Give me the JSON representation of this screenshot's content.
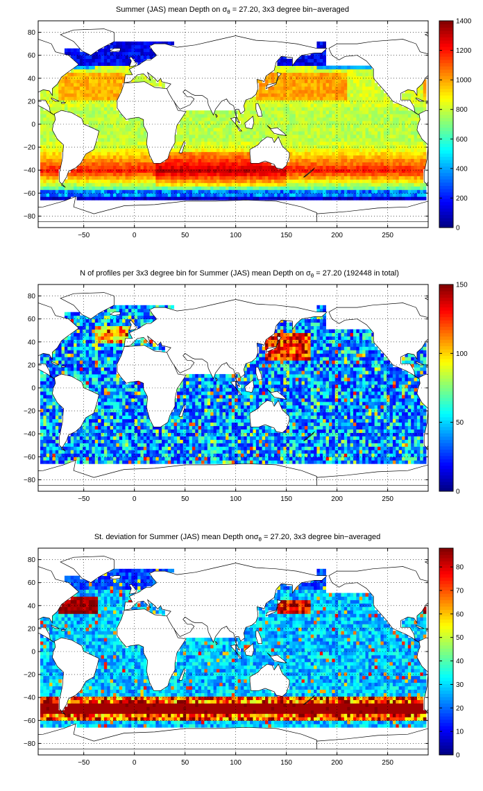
{
  "chart_data": [
    {
      "type": "heatmap",
      "title_pre": "Summer (JAS) mean Depth on σ",
      "title_sub": "θ",
      "title_post": " = 27.20, 3x3 degree bin−averaged",
      "xlim": [
        -95,
        290
      ],
      "ylim": [
        -90,
        90
      ],
      "xticks": [
        -50,
        0,
        50,
        100,
        150,
        200,
        250
      ],
      "yticks": [
        80,
        60,
        40,
        20,
        0,
        -20,
        -40,
        -60,
        -80
      ],
      "grid": true,
      "colorbar": {
        "min": 0,
        "max": 1400,
        "ticks": [
          0,
          200,
          400,
          600,
          800,
          1000,
          1200,
          1400
        ]
      }
    },
    {
      "type": "heatmap",
      "title_pre": "N of profiles per 3x3 degree bin for Summer (JAS) mean Depth on σ",
      "title_sub": "θ",
      "title_post": " = 27.20 (192448 in total)",
      "xlim": [
        -95,
        290
      ],
      "ylim": [
        -90,
        90
      ],
      "xticks": [
        -50,
        0,
        50,
        100,
        150,
        200,
        250
      ],
      "yticks": [
        80,
        60,
        40,
        20,
        0,
        -20,
        -40,
        -60,
        -80
      ],
      "grid": true,
      "colorbar": {
        "min": 0,
        "max": 150,
        "ticks": [
          0,
          50,
          100,
          150
        ]
      }
    },
    {
      "type": "heatmap",
      "title_pre": "St. deviation for Summer (JAS) mean Depth onσ",
      "title_sub": "θ",
      "title_post": " = 27.20, 3x3 degree bin−averaged",
      "xlim": [
        -95,
        290
      ],
      "ylim": [
        -90,
        90
      ],
      "xticks": [
        -50,
        0,
        50,
        100,
        150,
        200,
        250
      ],
      "yticks": [
        80,
        60,
        40,
        20,
        0,
        -20,
        -40,
        -60,
        -80
      ],
      "grid": true,
      "colorbar": {
        "min": 0,
        "max": 88,
        "ticks": [
          0,
          10,
          20,
          30,
          40,
          50,
          60,
          70,
          80
        ]
      }
    }
  ]
}
